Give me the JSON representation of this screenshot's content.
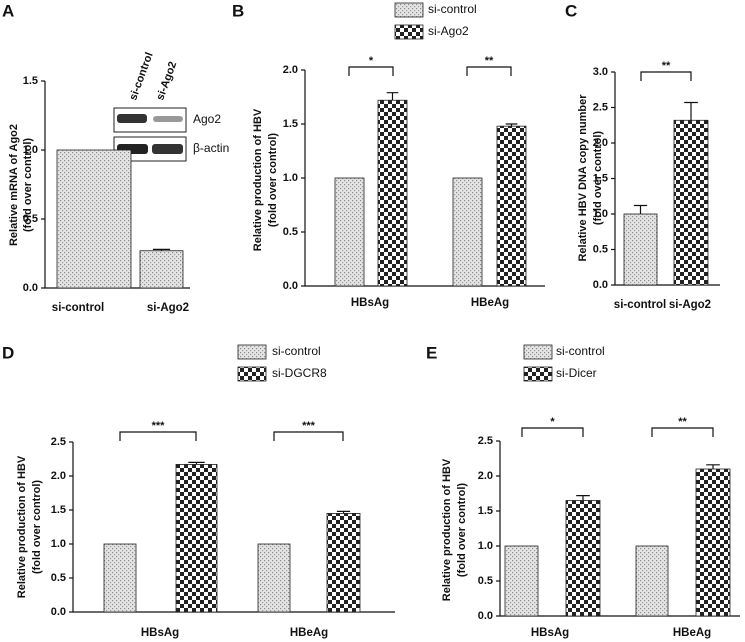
{
  "chart_data": [
    {
      "type": "bar",
      "panel": "A",
      "ylabel": [
        "Relative mRNA of Ago2",
        "(fold over control)"
      ],
      "categories": [
        "si-control",
        "si-Ago2"
      ],
      "values": [
        1.0,
        0.27
      ],
      "errors": [
        null,
        0.01
      ],
      "patterns": [
        "dots",
        "dots"
      ],
      "ylim": [
        0,
        1.5
      ],
      "yticks": [
        {
          "value": 0,
          "label": "0.0"
        },
        0.5,
        {
          "value": 1,
          "label": "1.0"
        },
        1.5
      ],
      "inset": {
        "lanes": [
          "si-control",
          "si-Ago2"
        ],
        "bands": [
          "Ago2",
          "β-actin"
        ]
      }
    },
    {
      "type": "grouped-bar",
      "panel": "B",
      "ylabel": [
        "Relative production of HBV",
        "(fold over control)"
      ],
      "categories": [
        "HBsAg",
        "HBeAg"
      ],
      "series": [
        {
          "name": "si-control",
          "pattern": "dots",
          "values": [
            1.0,
            1.0
          ],
          "errors": [
            null,
            null
          ]
        },
        {
          "name": "si-Ago2",
          "pattern": "checker",
          "values": [
            1.72,
            1.48
          ],
          "errors": [
            0.07,
            0.02
          ]
        }
      ],
      "annotations": [
        "*",
        "**"
      ],
      "ylim": [
        0,
        2
      ],
      "yticks": [
        {
          "value": 0,
          "label": "0.0"
        },
        0.5,
        {
          "value": 1,
          "label": "1.0"
        },
        1.5,
        {
          "value": 2,
          "label": "2.0"
        }
      ]
    },
    {
      "type": "bar",
      "panel": "C",
      "ylabel": [
        "Relative HBV DNA copy number",
        "(fold over control)"
      ],
      "categories": [
        "si-control",
        "si-Ago2"
      ],
      "values": [
        1.0,
        2.32
      ],
      "errors": [
        0.12,
        0.25
      ],
      "patterns": [
        "dots",
        "checker"
      ],
      "annotations": [
        "**"
      ],
      "ylim": [
        0,
        3
      ],
      "yticks": [
        {
          "value": 0,
          "label": "0.0"
        },
        0.5,
        {
          "value": 1,
          "label": "1.0"
        },
        1.5,
        {
          "value": 2,
          "label": "2.0"
        },
        2.5,
        {
          "value": 3,
          "label": "3.0"
        }
      ]
    },
    {
      "type": "grouped-bar",
      "panel": "D",
      "ylabel": [
        "Relative production of HBV",
        "(fold over control)"
      ],
      "categories": [
        "HBsAg",
        "HBeAg"
      ],
      "series": [
        {
          "name": "si-control",
          "pattern": "dots",
          "values": [
            1.0,
            1.0
          ],
          "errors": [
            null,
            null
          ]
        },
        {
          "name": "si-DGCR8",
          "pattern": "checker",
          "values": [
            2.17,
            1.45
          ],
          "errors": [
            0.03,
            0.03
          ]
        }
      ],
      "annotations": [
        "***",
        "***"
      ],
      "ylim": [
        0,
        2.5
      ],
      "yticks": [
        {
          "value": 0,
          "label": "0.0"
        },
        0.5,
        {
          "value": 1,
          "label": "1.0"
        },
        1.5,
        {
          "value": 2,
          "label": "2.0"
        },
        2.5
      ]
    },
    {
      "type": "grouped-bar",
      "panel": "E",
      "ylabel": [
        "Relative production of HBV",
        "(fold over control)"
      ],
      "categories": [
        "HBsAg",
        "HBeAg"
      ],
      "series": [
        {
          "name": "si-control",
          "pattern": "dots",
          "values": [
            1.0,
            1.0
          ],
          "errors": [
            null,
            null
          ]
        },
        {
          "name": "si-Dicer",
          "pattern": "checker",
          "values": [
            1.65,
            2.1
          ],
          "errors": [
            0.07,
            0.06
          ]
        }
      ],
      "annotations": [
        "*",
        "**"
      ],
      "ylim": [
        0,
        2.5
      ],
      "yticks": [
        {
          "value": 0,
          "label": "0.0"
        },
        0.5,
        {
          "value": 1,
          "label": "1.0"
        },
        1.5,
        {
          "value": 2,
          "label": "2.0"
        },
        2.5
      ]
    }
  ]
}
